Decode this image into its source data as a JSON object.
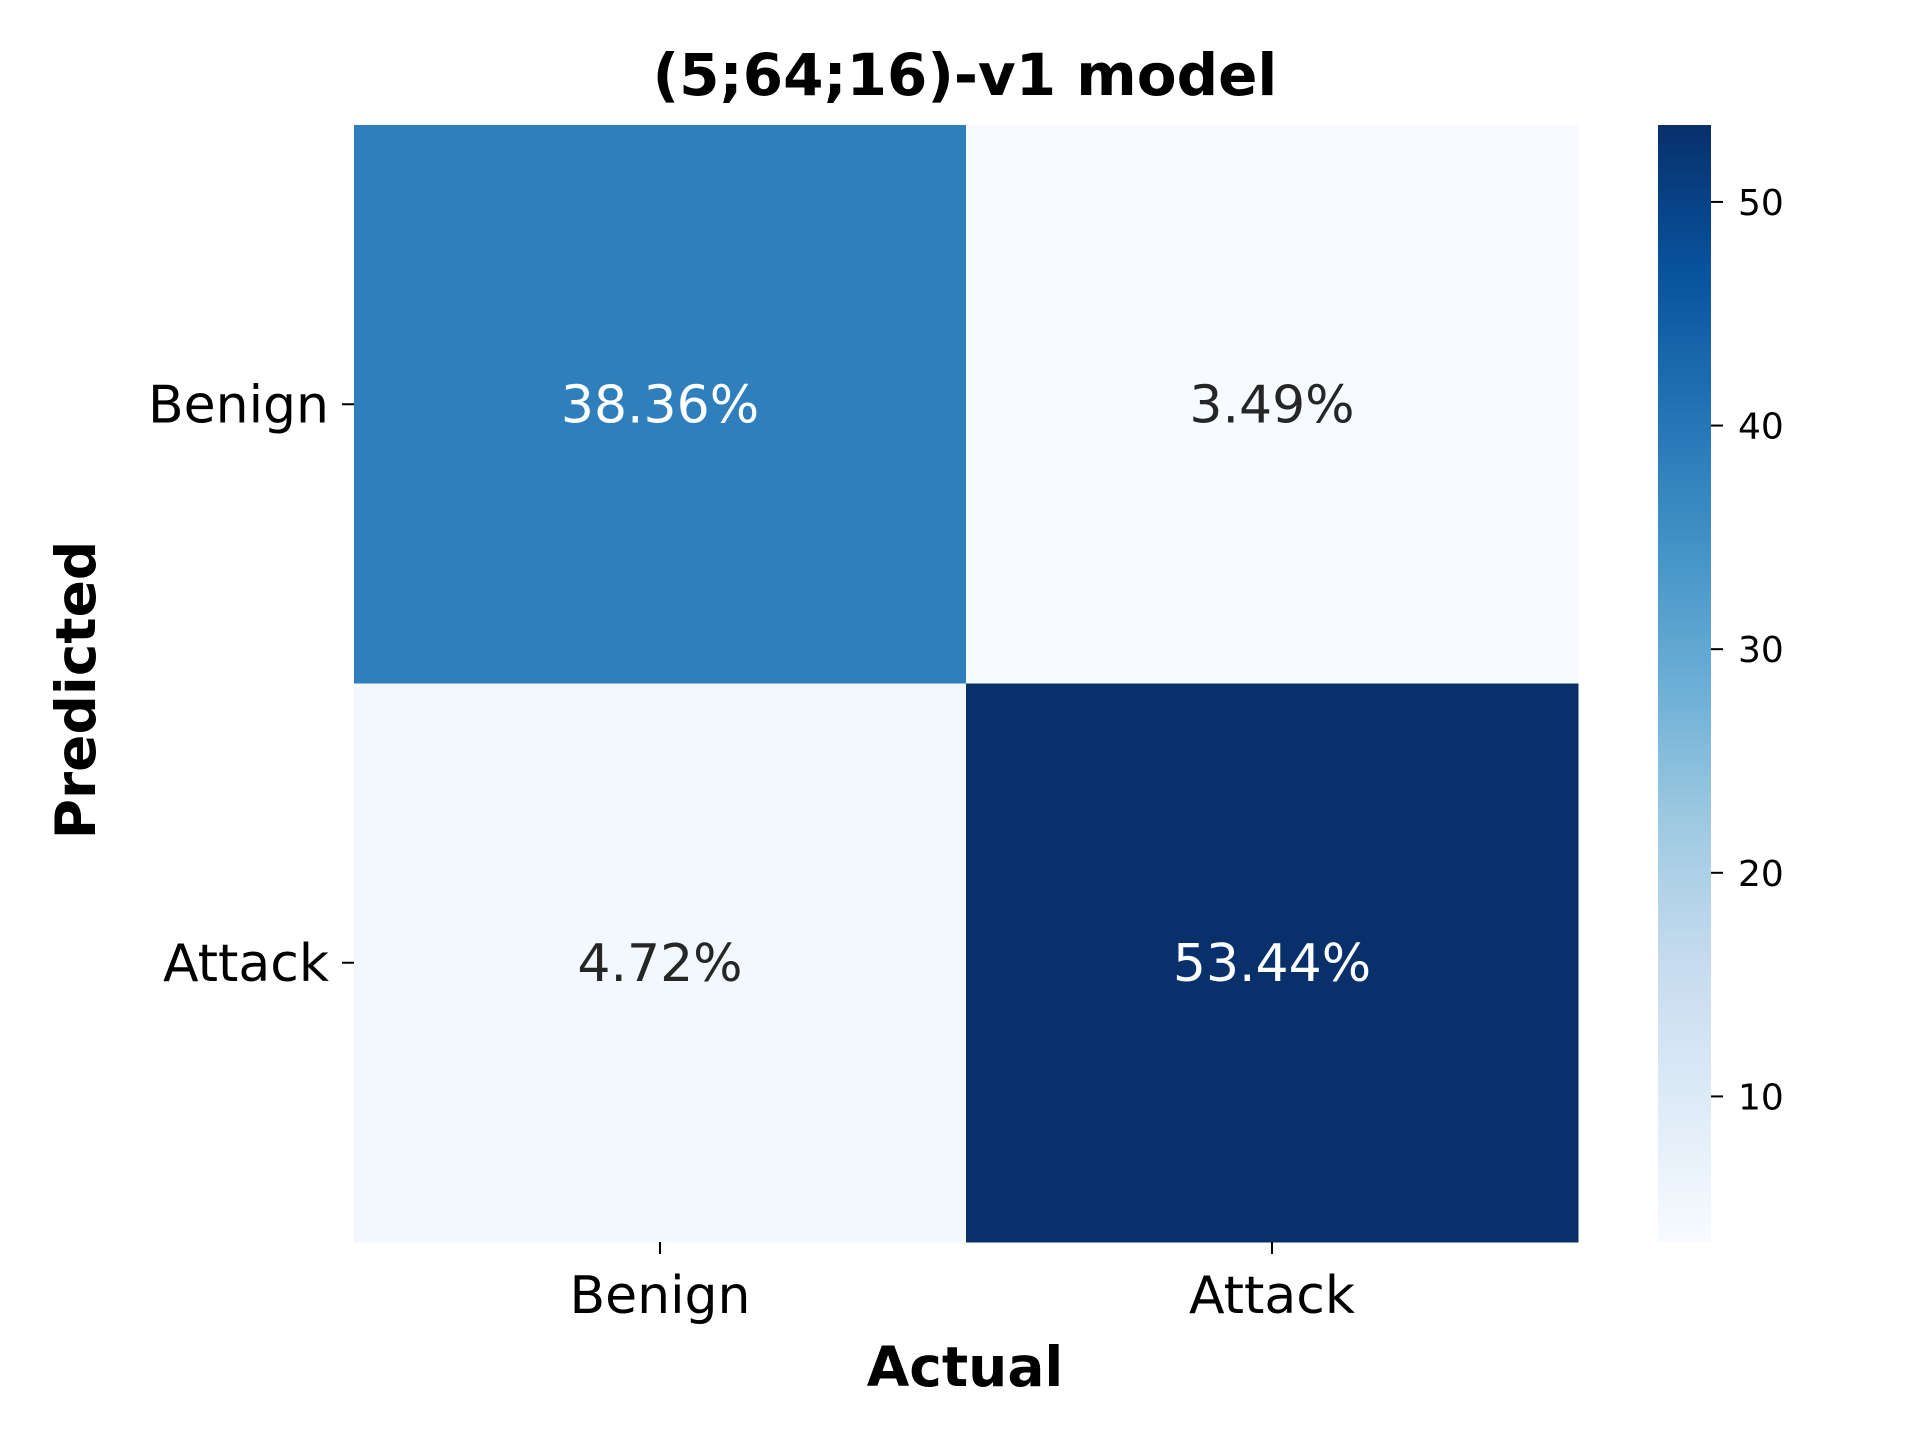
{
  "chart_data": {
    "type": "heatmap",
    "title": "(5;64;16)-v1 model",
    "xlabel": "Actual",
    "ylabel": "Predicted",
    "x_categories": [
      "Benign",
      "Attack"
    ],
    "y_categories": [
      "Benign",
      "Attack"
    ],
    "values": [
      [
        38.36,
        3.49
      ],
      [
        4.72,
        53.44
      ]
    ],
    "cell_labels": [
      [
        "38.36%",
        "3.49%"
      ],
      [
        "4.72%",
        "53.44%"
      ]
    ],
    "colormap": "Blues",
    "colorbar": {
      "range": [
        3.49,
        53.44
      ],
      "ticks": [
        10,
        20,
        30,
        40,
        50
      ],
      "tick_labels": [
        "10",
        "20",
        "30",
        "40",
        "50"
      ]
    },
    "colors": {
      "low": "#f7fbff",
      "high": "#08306b",
      "text_dark": "#262626",
      "text_light": "#ffffff"
    }
  }
}
